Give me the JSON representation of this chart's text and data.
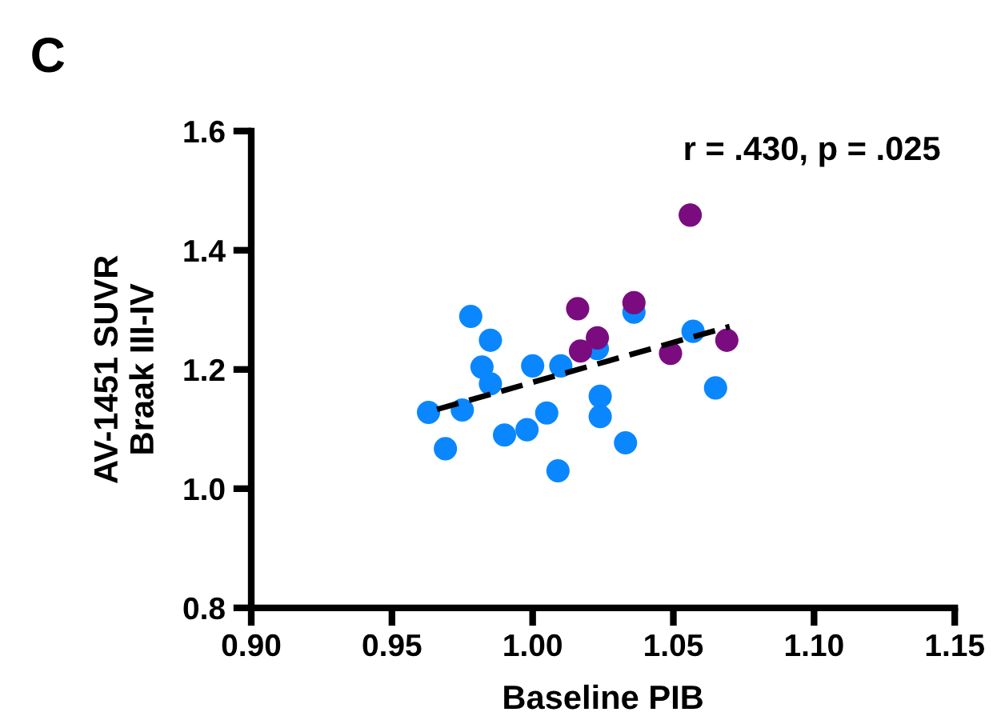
{
  "chart_data": {
    "type": "scatter",
    "title": "C",
    "xlabel": "Baseline PIB",
    "ylabel": "AV-1451 SUVR\nBraak III-IV",
    "annotations": [
      "r = .430, p = .025"
    ],
    "xlim": [
      0.9,
      1.15
    ],
    "xticks": [
      {
        "value": 0.9,
        "label": "0.90"
      },
      {
        "value": 0.95,
        "label": "0.95"
      },
      {
        "value": 1.0,
        "label": "1.00"
      },
      {
        "value": 1.05,
        "label": "1.05"
      },
      {
        "value": 1.1,
        "label": "1.10"
      },
      {
        "value": 1.15,
        "label": "1.15"
      }
    ],
    "ylim": [
      0.8,
      1.6
    ],
    "yticks": [
      {
        "value": 0.8,
        "label": "0.8"
      },
      {
        "value": 1.0,
        "label": "1.0"
      },
      {
        "value": 1.2,
        "label": "1.2"
      },
      {
        "value": 1.4,
        "label": "1.4"
      },
      {
        "value": 1.6,
        "label": "1.6"
      }
    ],
    "grid": false,
    "legend": false,
    "marker": "circle",
    "series": [
      {
        "color": "#0a87ff",
        "x": [
          0.963,
          0.969,
          0.975,
          0.978,
          0.985,
          0.982,
          0.985,
          0.99,
          0.998,
          1.0,
          1.005,
          1.009,
          1.01,
          1.023,
          1.024,
          1.024,
          1.033,
          1.036,
          1.057,
          1.065
        ],
        "values": [
          1.128,
          1.067,
          1.132,
          1.289,
          1.249,
          1.204,
          1.176,
          1.09,
          1.099,
          1.206,
          1.127,
          1.03,
          1.206,
          1.235,
          1.155,
          1.121,
          1.077,
          1.296,
          1.264,
          1.169
        ]
      },
      {
        "color": "#7b0c80",
        "x": [
          1.016,
          1.017,
          1.023,
          1.036,
          1.049,
          1.056,
          1.069
        ],
        "values": [
          1.302,
          1.231,
          1.253,
          1.312,
          1.227,
          1.459,
          1.249
        ]
      },
      {
        "type": "line",
        "color": "#000000",
        "line_style": "dashed",
        "marker": "none",
        "x": [
          0.966,
          1.07
        ],
        "values": [
          1.133,
          1.272
        ]
      }
    ]
  }
}
